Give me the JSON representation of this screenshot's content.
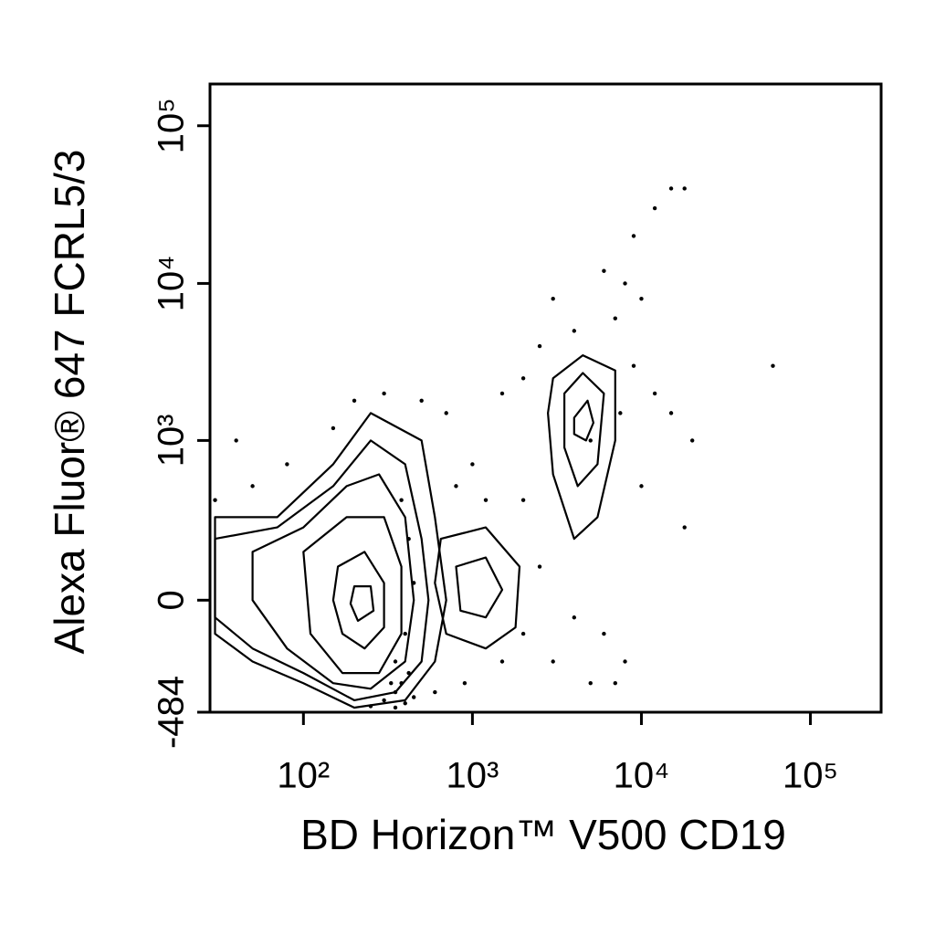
{
  "chart_data": {
    "type": "contour",
    "xlabel": "BD Horizon™ V500  CD19",
    "ylabel": "Alexa Fluor® 647 FCRL5/3",
    "xscale": "log",
    "yscale": "arcsinh",
    "xlim": [
      28,
      262143
    ],
    "ylim": [
      -484,
      184000
    ],
    "xticks": [
      {
        "value": 100,
        "label": "10²"
      },
      {
        "value": 1000,
        "label": "10³"
      },
      {
        "value": 10000,
        "label": "10⁴"
      },
      {
        "value": 100000,
        "label": "10⁵"
      }
    ],
    "yticks": [
      -484,
      0,
      {
        "value": 1000,
        "label": "10³"
      },
      {
        "value": 10000,
        "label": "10⁴"
      },
      {
        "value": 100000,
        "label": "10⁵"
      }
    ],
    "color": "#000000",
    "contours": [
      {
        "x": [
          30,
          70,
          150,
          250,
          500,
          600,
          700,
          600,
          400,
          200,
          100,
          50,
          30
        ],
        "y": [
          300,
          300,
          700,
          1500,
          1000,
          300,
          0,
          -200,
          -400,
          -450,
          -300,
          -200,
          -100
        ]
      },
      {
        "x": [
          30,
          70,
          150,
          250,
          400,
          500,
          550,
          500,
          350,
          200,
          100,
          50,
          30
        ],
        "y": [
          200,
          250,
          500,
          1000,
          700,
          200,
          0,
          -200,
          -350,
          -400,
          -250,
          -150,
          -50
        ]
      },
      {
        "x": [
          50,
          100,
          180,
          280,
          400,
          450,
          400,
          250,
          150,
          80,
          50
        ],
        "y": [
          150,
          250,
          500,
          600,
          300,
          0,
          -200,
          -330,
          -300,
          -150,
          0
        ]
      },
      {
        "x": [
          100,
          180,
          300,
          380,
          380,
          280,
          170,
          110
        ],
        "y": [
          150,
          300,
          300,
          100,
          -100,
          -250,
          -250,
          -100
        ]
      },
      {
        "x": [
          160,
          230,
          300,
          300,
          230,
          170,
          150
        ],
        "y": [
          100,
          150,
          50,
          -80,
          -150,
          -100,
          0
        ]
      },
      {
        "x": [
          200,
          250,
          260,
          210,
          190
        ],
        "y": [
          40,
          40,
          -30,
          -60,
          -10
        ]
      },
      {
        "x": [
          650,
          1200,
          1900,
          1800,
          1200,
          700,
          600
        ],
        "y": [
          200,
          250,
          100,
          -80,
          -150,
          -100,
          50
        ]
      },
      {
        "x": [
          800,
          1200,
          1500,
          1200,
          850
        ],
        "y": [
          100,
          130,
          30,
          -50,
          -30
        ]
      },
      {
        "x": [
          3000,
          4500,
          7000,
          7000,
          5500,
          4000,
          3000,
          2800
        ],
        "y": [
          2500,
          3500,
          2800,
          1000,
          300,
          200,
          600,
          1500
        ]
      },
      {
        "x": [
          3500,
          4500,
          6000,
          5500,
          4200,
          3500
        ],
        "y": [
          2000,
          2700,
          2000,
          700,
          500,
          900
        ]
      },
      {
        "x": [
          4000,
          4800,
          5200,
          4700,
          4000
        ],
        "y": [
          1400,
          1800,
          1300,
          1000,
          1100
        ]
      }
    ],
    "points": {
      "x": [
        60000,
        18000,
        15000,
        18000,
        12000,
        9000,
        8000,
        10000,
        6000,
        7000,
        3000,
        4000,
        2500,
        2000,
        1500,
        9000,
        12000,
        15000,
        20000,
        10000,
        6000,
        5000,
        3000,
        4000,
        2500,
        2000,
        1000,
        700,
        500,
        300,
        200,
        150,
        80,
        50,
        40,
        30,
        350,
        400,
        250,
        450,
        300,
        380,
        420,
        350,
        400,
        450,
        420,
        380,
        350,
        330,
        8000,
        7000,
        5000,
        7500,
        1200,
        800,
        2000,
        1500,
        600,
        900
      ],
      "y": [
        3000,
        250,
        40000,
        40000,
        30000,
        20000,
        10000,
        8000,
        12000,
        6000,
        8000,
        5000,
        4000,
        2500,
        2000,
        3000,
        2000,
        1500,
        1000,
        500,
        -100,
        -300,
        -200,
        -50,
        100,
        400,
        700,
        1500,
        1800,
        2000,
        1800,
        1200,
        700,
        500,
        1000,
        400,
        -450,
        -420,
        -440,
        -380,
        -400,
        -300,
        -250,
        -200,
        -100,
        50,
        200,
        400,
        -350,
        -300,
        -200,
        -300,
        1000,
        1500,
        400,
        500,
        -100,
        -200,
        -350,
        -300
      ]
    }
  }
}
